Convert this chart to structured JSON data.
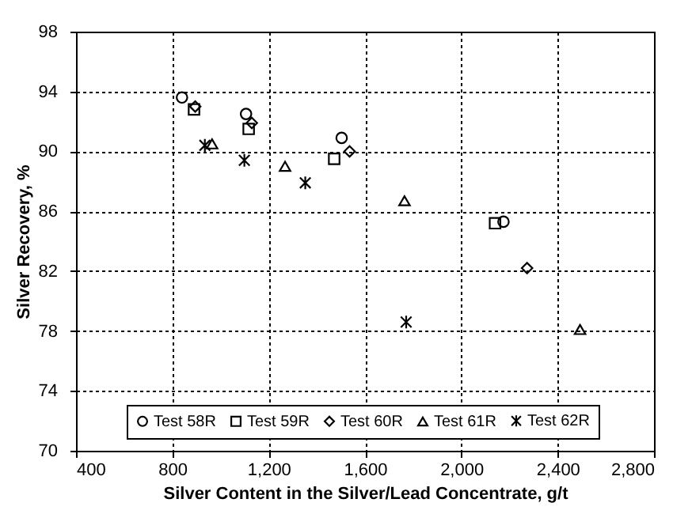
{
  "chart_data": {
    "type": "scatter",
    "xlabel": "Silver Content in the Silver/Lead Concentrate, g/t",
    "ylabel": "Silver Recovery, %",
    "xlim": [
      400,
      2800
    ],
    "xticks": [
      {
        "value": 400,
        "label": "400"
      },
      {
        "value": 800,
        "label": "800"
      },
      {
        "value": 1200,
        "label": "1,200"
      },
      {
        "value": 1600,
        "label": "1,600"
      },
      {
        "value": 2000,
        "label": "2,000"
      },
      {
        "value": 2400,
        "label": "2,400"
      },
      {
        "value": 2800,
        "label": "2,800"
      }
    ],
    "ylim": [
      70,
      98
    ],
    "yticks": [
      70,
      74,
      78,
      82,
      86,
      90,
      94,
      98
    ],
    "grid": true,
    "legend": "bottom",
    "series": [
      {
        "name": "Test 58R",
        "color": "#000000",
        "marker": "circle",
        "x": [
          840,
          1106,
          1503,
          2175
        ],
        "values": [
          93.6,
          92.5,
          90.9,
          85.3
        ]
      },
      {
        "name": "Test 59R",
        "color": "#000000",
        "marker": "square",
        "x": [
          890,
          1117,
          1472,
          2140
        ],
        "values": [
          92.8,
          91.5,
          89.5,
          85.2
        ]
      },
      {
        "name": "Test 60R",
        "color": "#000000",
        "marker": "diamond",
        "x": [
          895,
          1130,
          1536,
          2273
        ],
        "values": [
          93.0,
          91.9,
          90.0,
          82.2
        ]
      },
      {
        "name": "Test 61R",
        "color": "#000000",
        "marker": "triangle",
        "x": [
          965,
          1268,
          1764,
          2493
        ],
        "values": [
          90.5,
          89.0,
          86.7,
          78.1
        ]
      },
      {
        "name": "Test 62R",
        "color": "#000000",
        "marker": "cross",
        "x": [
          935,
          1099,
          1352,
          1771
        ],
        "values": [
          90.4,
          89.4,
          87.9,
          78.6
        ]
      }
    ]
  }
}
